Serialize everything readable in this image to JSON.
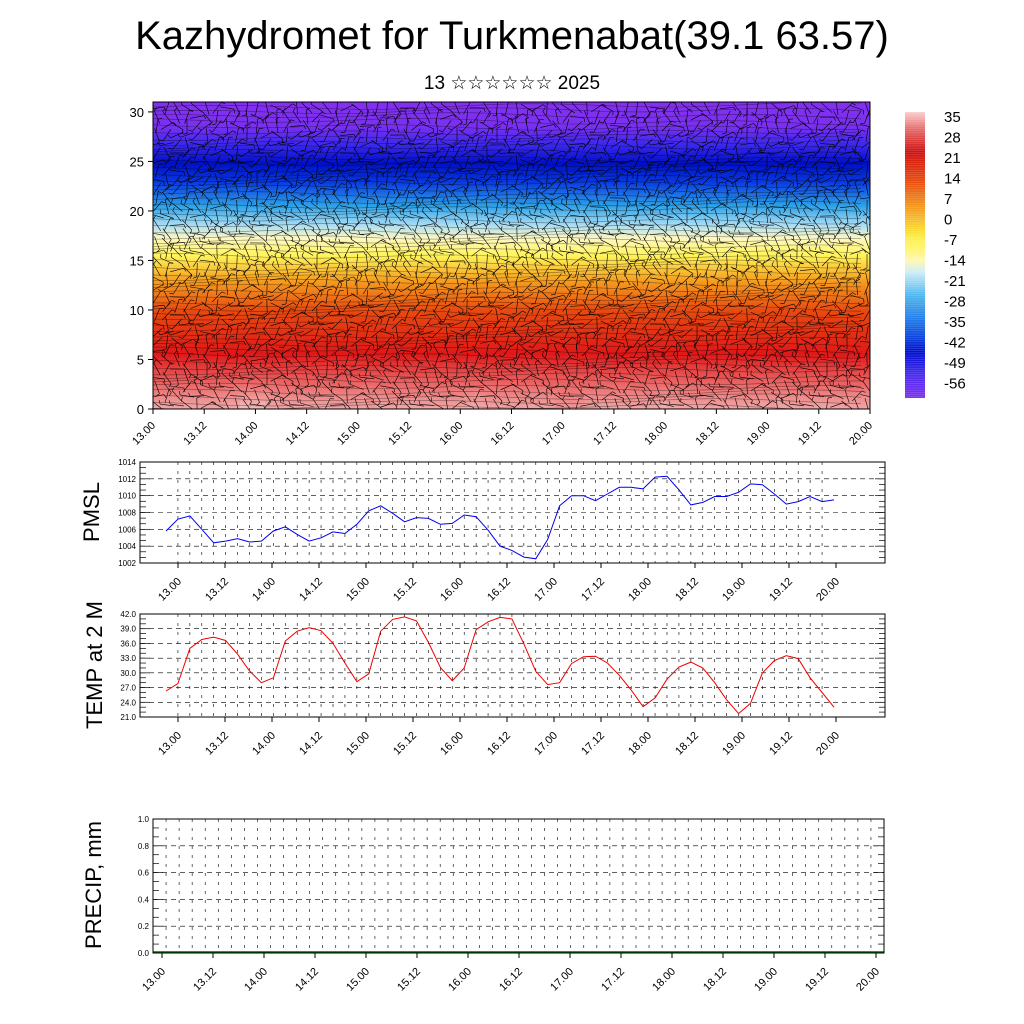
{
  "title": "Kazhydromet for Turkmenabat(39.1 63.57)",
  "subtitle": "13 ☆☆☆☆☆☆ 2025",
  "x_tick_labels": [
    "13.00",
    "13.12",
    "14.00",
    "14.12",
    "15.00",
    "15.12",
    "16.00",
    "16.12",
    "17.00",
    "17.12",
    "18.00",
    "18.12",
    "19.00",
    "19.12",
    "20.00"
  ],
  "chart_data": [
    {
      "type": "heatmap",
      "x_range": [
        "13.00",
        "20.00"
      ],
      "y_tick_labels": [
        "0",
        "5",
        "10",
        "15",
        "20",
        "25",
        "30"
      ],
      "ylim": [
        0,
        31
      ],
      "colorbar_labels": [
        "35",
        "28",
        "21",
        "14",
        "7",
        "0",
        "-7",
        "-14",
        "-21",
        "-28",
        "-35",
        "-42",
        "-49",
        "-56"
      ],
      "colors": [
        "#f7c6c6",
        "#e83030",
        "#d01010",
        "#f0a020",
        "#fff560",
        "#3fa8e8",
        "#0010d0",
        "#8030f0"
      ]
    },
    {
      "type": "line",
      "ylabel": "PMSL",
      "ylim": [
        1002,
        1014
      ],
      "y_tick_labels": [
        "1002",
        "1004",
        "1006",
        "1008",
        "1010",
        "1012",
        "1014"
      ],
      "color": "#0000ee",
      "series": [
        {
          "values": [
            1005.8,
            1007.2,
            1007.6,
            1006.0,
            1004.4,
            1004.6,
            1004.9,
            1004.5,
            1004.6,
            1005.8,
            1006.3,
            1005.4,
            1004.6,
            1005.0,
            1005.7,
            1005.5,
            1006.6,
            1008.2,
            1008.8,
            1007.9,
            1006.9,
            1007.4,
            1007.3,
            1006.6,
            1006.7,
            1007.7,
            1007.5,
            1005.9,
            1004.0,
            1003.5,
            1002.7,
            1002.5,
            1004.8,
            1008.8,
            1010.0,
            1010.0,
            1009.4,
            1010.2,
            1011.0,
            1011.0,
            1010.8,
            1012.2,
            1012.3,
            1010.7,
            1008.9,
            1009.2,
            1009.9,
            1009.9,
            1010.4,
            1011.4,
            1011.3,
            1010.2,
            1009.0,
            1009.3,
            1009.9,
            1009.3,
            1009.5
          ]
        }
      ]
    },
    {
      "type": "line",
      "ylabel": "TEMP at 2 M",
      "ylim": [
        21.0,
        42.0
      ],
      "y_tick_labels": [
        "21.0",
        "24.0",
        "27.0",
        "30.0",
        "33.0",
        "36.0",
        "39.0",
        "42.0"
      ],
      "color": "#ee0000",
      "series": [
        {
          "values": [
            26.3,
            27.8,
            35.0,
            36.8,
            37.3,
            36.6,
            33.8,
            30.4,
            28.0,
            29.0,
            36.5,
            38.5,
            39.2,
            38.6,
            36.0,
            32.0,
            28.2,
            29.8,
            38.5,
            40.9,
            41.4,
            40.6,
            36.2,
            31.1,
            28.4,
            31.0,
            38.8,
            40.4,
            41.3,
            41.0,
            35.9,
            30.3,
            27.6,
            28.0,
            31.9,
            33.3,
            33.4,
            32.0,
            29.5,
            26.5,
            23.1,
            24.9,
            28.7,
            31.2,
            32.2,
            31.0,
            28.0,
            24.5,
            21.7,
            23.8,
            30.0,
            32.5,
            33.5,
            32.9,
            29.0,
            26.0,
            23.0
          ]
        }
      ]
    },
    {
      "type": "bar",
      "ylabel": "PRECIP, mm",
      "ylim": [
        0.0,
        1.0
      ],
      "y_tick_labels": [
        "0.0",
        "0.2",
        "0.4",
        "0.6",
        "0.8",
        "1.0"
      ],
      "color": "#006400",
      "series": [
        {
          "values": [
            0,
            0,
            0,
            0,
            0,
            0,
            0,
            0,
            0,
            0,
            0,
            0,
            0,
            0,
            0,
            0,
            0,
            0,
            0,
            0,
            0,
            0,
            0,
            0,
            0,
            0,
            0,
            0,
            0,
            0,
            0,
            0,
            0,
            0,
            0,
            0,
            0,
            0,
            0,
            0,
            0,
            0,
            0,
            0,
            0,
            0,
            0,
            0,
            0,
            0,
            0,
            0,
            0,
            0,
            0,
            0,
            0
          ]
        }
      ]
    }
  ]
}
